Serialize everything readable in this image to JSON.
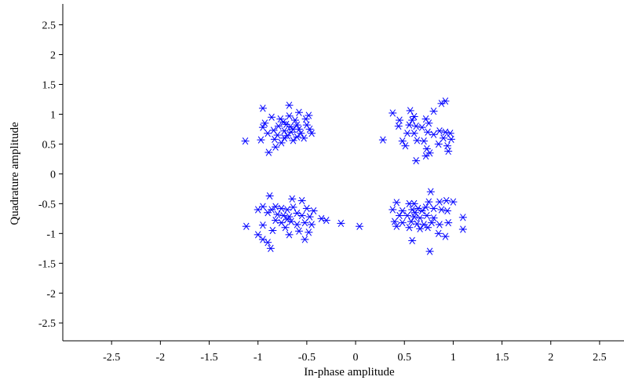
{
  "chart_data": {
    "type": "scatter",
    "title": "",
    "xlabel": "In-phase amplitude",
    "ylabel": "Quadrature amplitude",
    "xlim": [
      -3,
      2.75
    ],
    "ylim": [
      -2.8,
      2.85
    ],
    "x_ticks": [
      -2.5,
      -2,
      -1.5,
      -1,
      -0.5,
      0,
      0.5,
      1,
      1.5,
      2,
      2.5
    ],
    "x_tick_labels": [
      "-2.5",
      "-2",
      "-1.5",
      "-1",
      "-0.5",
      "0",
      "0.5",
      "1",
      "1.5",
      "2",
      "2.5"
    ],
    "y_ticks": [
      2.5,
      2,
      1.5,
      1,
      0.5,
      0,
      -0.5,
      -1,
      -1.5,
      -2,
      -2.5
    ],
    "y_tick_labels": [
      "2.5",
      "2",
      "1.5",
      "1",
      "0.5",
      "0",
      "-0.5",
      "-1",
      "-1.5",
      "-2",
      "-2.5"
    ],
    "grid": false,
    "marker": "asterisk",
    "color": "#0000ff",
    "series": [
      {
        "points": [
          [
            -0.95,
            1.1
          ],
          [
            -0.68,
            1.15
          ],
          [
            -0.58,
            1.03
          ],
          [
            -0.48,
            0.98
          ],
          [
            -0.86,
            0.95
          ],
          [
            -0.93,
            0.85
          ],
          [
            -0.74,
            0.87
          ],
          [
            -0.62,
            0.9
          ],
          [
            -0.51,
            0.92
          ],
          [
            -0.79,
            0.8
          ],
          [
            -0.67,
            0.79
          ],
          [
            -0.58,
            0.75
          ],
          [
            -0.47,
            0.75
          ],
          [
            -0.84,
            0.73
          ],
          [
            -0.73,
            0.72
          ],
          [
            -0.66,
            0.7
          ],
          [
            -0.56,
            0.68
          ],
          [
            -0.45,
            0.68
          ],
          [
            -0.97,
            0.57
          ],
          [
            -1.13,
            0.55
          ],
          [
            -0.9,
            0.68
          ],
          [
            -0.8,
            0.65
          ],
          [
            -0.7,
            0.64
          ],
          [
            -0.6,
            0.62
          ],
          [
            -0.83,
            0.58
          ],
          [
            -0.73,
            0.6
          ],
          [
            -0.64,
            0.56
          ],
          [
            -0.76,
            0.52
          ],
          [
            -0.89,
            0.36
          ],
          [
            -0.82,
            0.45
          ],
          [
            -0.71,
            0.83
          ],
          [
            -0.6,
            0.82
          ],
          [
            -0.95,
            0.78
          ],
          [
            -0.53,
            0.6
          ],
          [
            -0.68,
            0.97
          ],
          [
            -0.64,
            0.75
          ],
          [
            -0.77,
            0.92
          ],
          [
            -0.5,
            0.82
          ],
          [
            0.92,
            1.22
          ],
          [
            0.88,
            1.18
          ],
          [
            0.38,
            1.02
          ],
          [
            0.56,
            1.06
          ],
          [
            0.8,
            1.05
          ],
          [
            0.6,
            0.96
          ],
          [
            0.72,
            0.92
          ],
          [
            0.45,
            0.9
          ],
          [
            0.75,
            0.85
          ],
          [
            0.44,
            0.8
          ],
          [
            0.55,
            0.82
          ],
          [
            0.62,
            0.8
          ],
          [
            0.68,
            0.78
          ],
          [
            0.86,
            0.72
          ],
          [
            0.92,
            0.7
          ],
          [
            0.97,
            0.68
          ],
          [
            0.74,
            0.7
          ],
          [
            0.6,
            0.68
          ],
          [
            0.53,
            0.68
          ],
          [
            0.9,
            0.6
          ],
          [
            0.98,
            0.58
          ],
          [
            0.48,
            0.55
          ],
          [
            0.63,
            0.56
          ],
          [
            0.7,
            0.55
          ],
          [
            0.85,
            0.5
          ],
          [
            0.94,
            0.47
          ],
          [
            0.28,
            0.57
          ],
          [
            0.51,
            0.47
          ],
          [
            0.73,
            0.42
          ],
          [
            0.76,
            0.35
          ],
          [
            0.72,
            0.3
          ],
          [
            0.62,
            0.22
          ],
          [
            0.95,
            0.38
          ],
          [
            0.8,
            0.66
          ],
          [
            0.58,
            0.9
          ],
          [
            -0.88,
            -0.37
          ],
          [
            -0.65,
            -0.42
          ],
          [
            -0.55,
            -0.45
          ],
          [
            -1.0,
            -0.6
          ],
          [
            -0.95,
            -0.55
          ],
          [
            -0.82,
            -0.55
          ],
          [
            -0.76,
            -0.58
          ],
          [
            -0.7,
            -0.6
          ],
          [
            -0.64,
            -0.56
          ],
          [
            -0.5,
            -0.58
          ],
          [
            -0.43,
            -0.62
          ],
          [
            -0.9,
            -0.65
          ],
          [
            -0.8,
            -0.68
          ],
          [
            -0.74,
            -0.7
          ],
          [
            -0.68,
            -0.72
          ],
          [
            -0.6,
            -0.66
          ],
          [
            -0.55,
            -0.7
          ],
          [
            -0.47,
            -0.72
          ],
          [
            -0.35,
            -0.75
          ],
          [
            -0.3,
            -0.78
          ],
          [
            -0.82,
            -0.78
          ],
          [
            -0.76,
            -0.82
          ],
          [
            -0.66,
            -0.8
          ],
          [
            -0.6,
            -0.85
          ],
          [
            -0.52,
            -0.82
          ],
          [
            -0.45,
            -0.85
          ],
          [
            -1.12,
            -0.88
          ],
          [
            -0.95,
            -0.86
          ],
          [
            -0.85,
            -0.95
          ],
          [
            -0.72,
            -0.9
          ],
          [
            -0.58,
            -0.96
          ],
          [
            -0.48,
            -0.98
          ],
          [
            -1.0,
            -1.02
          ],
          [
            -0.68,
            -1.02
          ],
          [
            -0.52,
            -1.1
          ],
          [
            -0.95,
            -1.1
          ],
          [
            -0.9,
            -1.15
          ],
          [
            -0.87,
            -1.25
          ],
          [
            -0.15,
            -0.83
          ],
          [
            0.04,
            -0.88
          ],
          [
            -0.7,
            -0.76
          ],
          [
            -0.86,
            -0.6
          ],
          [
            0.77,
            -0.3
          ],
          [
            0.42,
            -0.48
          ],
          [
            0.55,
            -0.5
          ],
          [
            0.6,
            -0.5
          ],
          [
            0.75,
            -0.47
          ],
          [
            0.86,
            -0.47
          ],
          [
            0.93,
            -0.45
          ],
          [
            1.0,
            -0.47
          ],
          [
            0.38,
            -0.6
          ],
          [
            0.48,
            -0.62
          ],
          [
            0.58,
            -0.6
          ],
          [
            0.64,
            -0.58
          ],
          [
            0.72,
            -0.56
          ],
          [
            0.8,
            -0.58
          ],
          [
            0.88,
            -0.6
          ],
          [
            0.94,
            -0.62
          ],
          [
            0.45,
            -0.7
          ],
          [
            0.53,
            -0.7
          ],
          [
            0.6,
            -0.72
          ],
          [
            0.66,
            -0.74
          ],
          [
            0.73,
            -0.7
          ],
          [
            0.8,
            -0.74
          ],
          [
            1.1,
            -0.73
          ],
          [
            0.4,
            -0.8
          ],
          [
            0.48,
            -0.82
          ],
          [
            0.57,
            -0.8
          ],
          [
            0.63,
            -0.84
          ],
          [
            0.7,
            -0.85
          ],
          [
            0.78,
            -0.82
          ],
          [
            0.86,
            -0.85
          ],
          [
            0.95,
            -0.82
          ],
          [
            0.42,
            -0.88
          ],
          [
            0.55,
            -0.9
          ],
          [
            0.66,
            -0.92
          ],
          [
            0.74,
            -0.9
          ],
          [
            1.1,
            -0.93
          ],
          [
            0.85,
            -1.0
          ],
          [
            0.58,
            -1.12
          ],
          [
            0.92,
            -1.05
          ],
          [
            0.76,
            -1.3
          ],
          [
            0.61,
            -0.65
          ],
          [
            0.68,
            -0.62
          ]
        ]
      }
    ]
  }
}
